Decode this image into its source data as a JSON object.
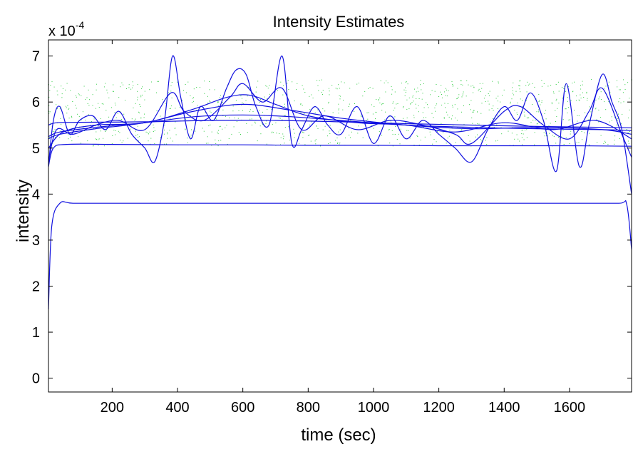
{
  "chart_data": {
    "type": "line",
    "title": "Intensity Estimates",
    "xlabel": "time (sec)",
    "ylabel": "intensity",
    "y_multiplier_label": {
      "base": "x 10",
      "exponent": "-4"
    },
    "xlim": [
      5,
      1790
    ],
    "ylim": [
      -0.3,
      7.35
    ],
    "xticks": [
      200,
      400,
      600,
      800,
      1000,
      1200,
      1400,
      1600
    ],
    "yticks": [
      0,
      1,
      2,
      3,
      4,
      5,
      6,
      7
    ],
    "grid": false,
    "colors": {
      "series": "#1010e0",
      "scatter": "#2ecc40",
      "axis": "#000000"
    },
    "scatter_band": {
      "x": [
        5,
        1790
      ],
      "y": [
        5.05,
        6.5
      ]
    },
    "series": [
      {
        "x": [
          5,
          15,
          40,
          80,
          200,
          400,
          600,
          800,
          1000,
          1200,
          1400,
          1600,
          1750,
          1775,
          1790
        ],
        "y": [
          1.5,
          3.3,
          3.8,
          3.8,
          3.8,
          3.8,
          3.8,
          3.8,
          3.8,
          3.8,
          3.8,
          3.8,
          3.8,
          3.78,
          2.8
        ]
      },
      {
        "x": [
          5,
          20,
          60,
          200,
          400,
          600,
          800,
          1000,
          1200,
          1400,
          1600,
          1790
        ],
        "y": [
          4.6,
          5.0,
          5.08,
          5.08,
          5.07,
          5.07,
          5.06,
          5.06,
          5.05,
          5.05,
          5.05,
          5.04
        ]
      },
      {
        "x": [
          5,
          30,
          100,
          300,
          500,
          700,
          900,
          1100,
          1300,
          1500,
          1700,
          1790
        ],
        "y": [
          5.5,
          5.55,
          5.56,
          5.57,
          5.6,
          5.6,
          5.57,
          5.53,
          5.5,
          5.47,
          5.45,
          5.44
        ]
      },
      {
        "x": [
          5,
          40,
          150,
          300,
          450,
          600,
          750,
          900,
          1100,
          1300,
          1500,
          1700,
          1790
        ],
        "y": [
          5.25,
          5.35,
          5.45,
          5.55,
          5.68,
          5.72,
          5.68,
          5.6,
          5.5,
          5.45,
          5.42,
          5.4,
          5.38
        ]
      },
      {
        "x": [
          5,
          40,
          150,
          300,
          450,
          600,
          750,
          900,
          1100,
          1300,
          1500,
          1700,
          1790
        ],
        "y": [
          5.2,
          5.3,
          5.42,
          5.55,
          5.8,
          5.95,
          5.82,
          5.65,
          5.5,
          5.42,
          5.45,
          5.4,
          5.3
        ]
      },
      {
        "x": [
          5,
          50,
          150,
          300,
          450,
          550,
          620,
          700,
          800,
          950,
          1100,
          1250,
          1400,
          1550,
          1680,
          1790
        ],
        "y": [
          5.0,
          5.35,
          5.5,
          5.55,
          5.85,
          6.1,
          6.15,
          5.95,
          5.7,
          5.55,
          5.5,
          5.35,
          5.55,
          5.4,
          5.6,
          5.2
        ]
      },
      {
        "x": [
          5,
          30,
          80,
          150,
          220,
          300,
          380,
          420,
          480,
          560,
          600,
          660,
          720,
          780,
          850,
          950,
          1050,
          1150,
          1250,
          1300,
          1400,
          1450,
          1520,
          1600,
          1660,
          1700,
          1760,
          1790
        ],
        "y": [
          4.7,
          5.4,
          5.3,
          5.5,
          5.6,
          5.4,
          6.2,
          5.8,
          5.6,
          6.1,
          6.4,
          6.0,
          6.3,
          5.4,
          5.7,
          5.4,
          5.6,
          5.5,
          5.3,
          5.1,
          5.8,
          5.9,
          5.5,
          5.2,
          5.8,
          6.3,
          5.3,
          4.8
        ]
      },
      {
        "x": [
          5,
          20,
          40,
          70,
          100,
          140,
          180,
          220,
          260,
          300,
          330,
          360,
          385,
          410,
          440,
          470,
          510,
          550,
          580,
          610,
          640,
          680,
          720,
          750,
          780,
          820,
          860,
          900,
          950,
          1000,
          1050,
          1100,
          1150,
          1200,
          1250,
          1300,
          1350,
          1400,
          1440,
          1480,
          1520,
          1560,
          1590,
          1630,
          1660,
          1700,
          1730,
          1760,
          1790
        ],
        "y": [
          4.6,
          5.6,
          5.9,
          5.3,
          5.6,
          5.7,
          5.4,
          5.8,
          5.3,
          5.0,
          4.7,
          5.6,
          7.0,
          6.1,
          5.2,
          5.9,
          5.6,
          6.3,
          6.7,
          6.6,
          5.9,
          5.5,
          7.0,
          5.1,
          5.4,
          5.9,
          5.5,
          5.3,
          5.9,
          5.1,
          5.7,
          5.2,
          5.6,
          5.3,
          5.0,
          4.7,
          5.4,
          5.9,
          5.6,
          6.2,
          5.6,
          4.5,
          6.4,
          4.6,
          5.5,
          6.6,
          6.0,
          5.4,
          4.0
        ]
      }
    ]
  }
}
